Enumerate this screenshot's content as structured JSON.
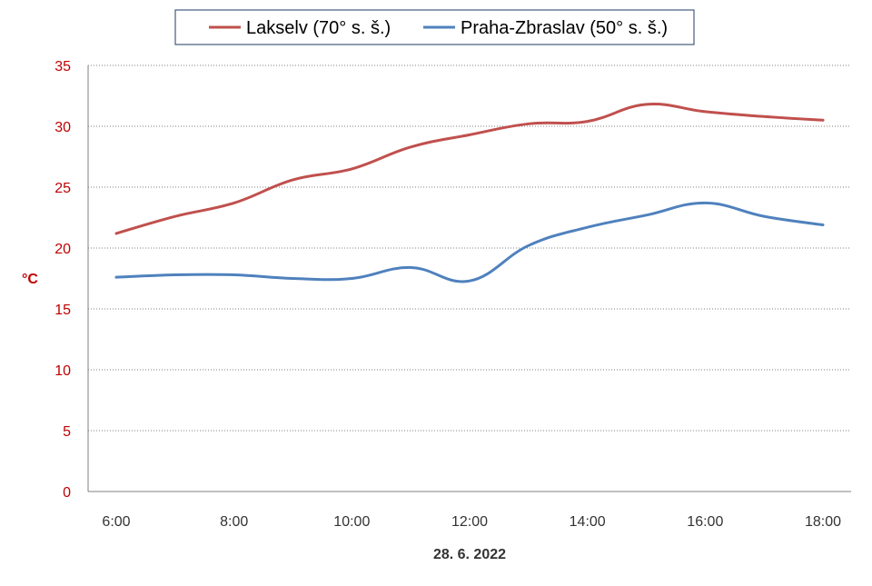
{
  "chart_data": {
    "type": "line",
    "title": "",
    "xlabel": "28. 6. 2022",
    "ylabel": "°C",
    "x": [
      "6:00",
      "7:00",
      "8:00",
      "9:00",
      "10:00",
      "11:00",
      "12:00",
      "13:00",
      "14:00",
      "15:00",
      "16:00",
      "17:00",
      "18:00"
    ],
    "xtick_labels": [
      "6:00",
      "8:00",
      "10:00",
      "12:00",
      "14:00",
      "16:00",
      "18:00"
    ],
    "ylim": [
      0,
      35
    ],
    "yticks": [
      0,
      5,
      10,
      15,
      20,
      25,
      30,
      35
    ],
    "grid": "horizontal dotted",
    "legend_position": "top-center",
    "series": [
      {
        "name": "Lakselv (70° s. š.)",
        "color": "#C0504D",
        "values": [
          21.2,
          22.6,
          23.7,
          25.6,
          26.5,
          28.3,
          29.3,
          30.2,
          30.4,
          31.8,
          31.2,
          30.8,
          30.5
        ]
      },
      {
        "name": "Praha-Zbraslav (50° s. š.)",
        "color": "#4F81BD",
        "values": [
          17.6,
          17.8,
          17.8,
          17.5,
          17.5,
          18.4,
          17.3,
          20.2,
          21.7,
          22.7,
          23.7,
          22.6,
          21.9
        ]
      }
    ],
    "axis_text_color": "#C00000"
  }
}
